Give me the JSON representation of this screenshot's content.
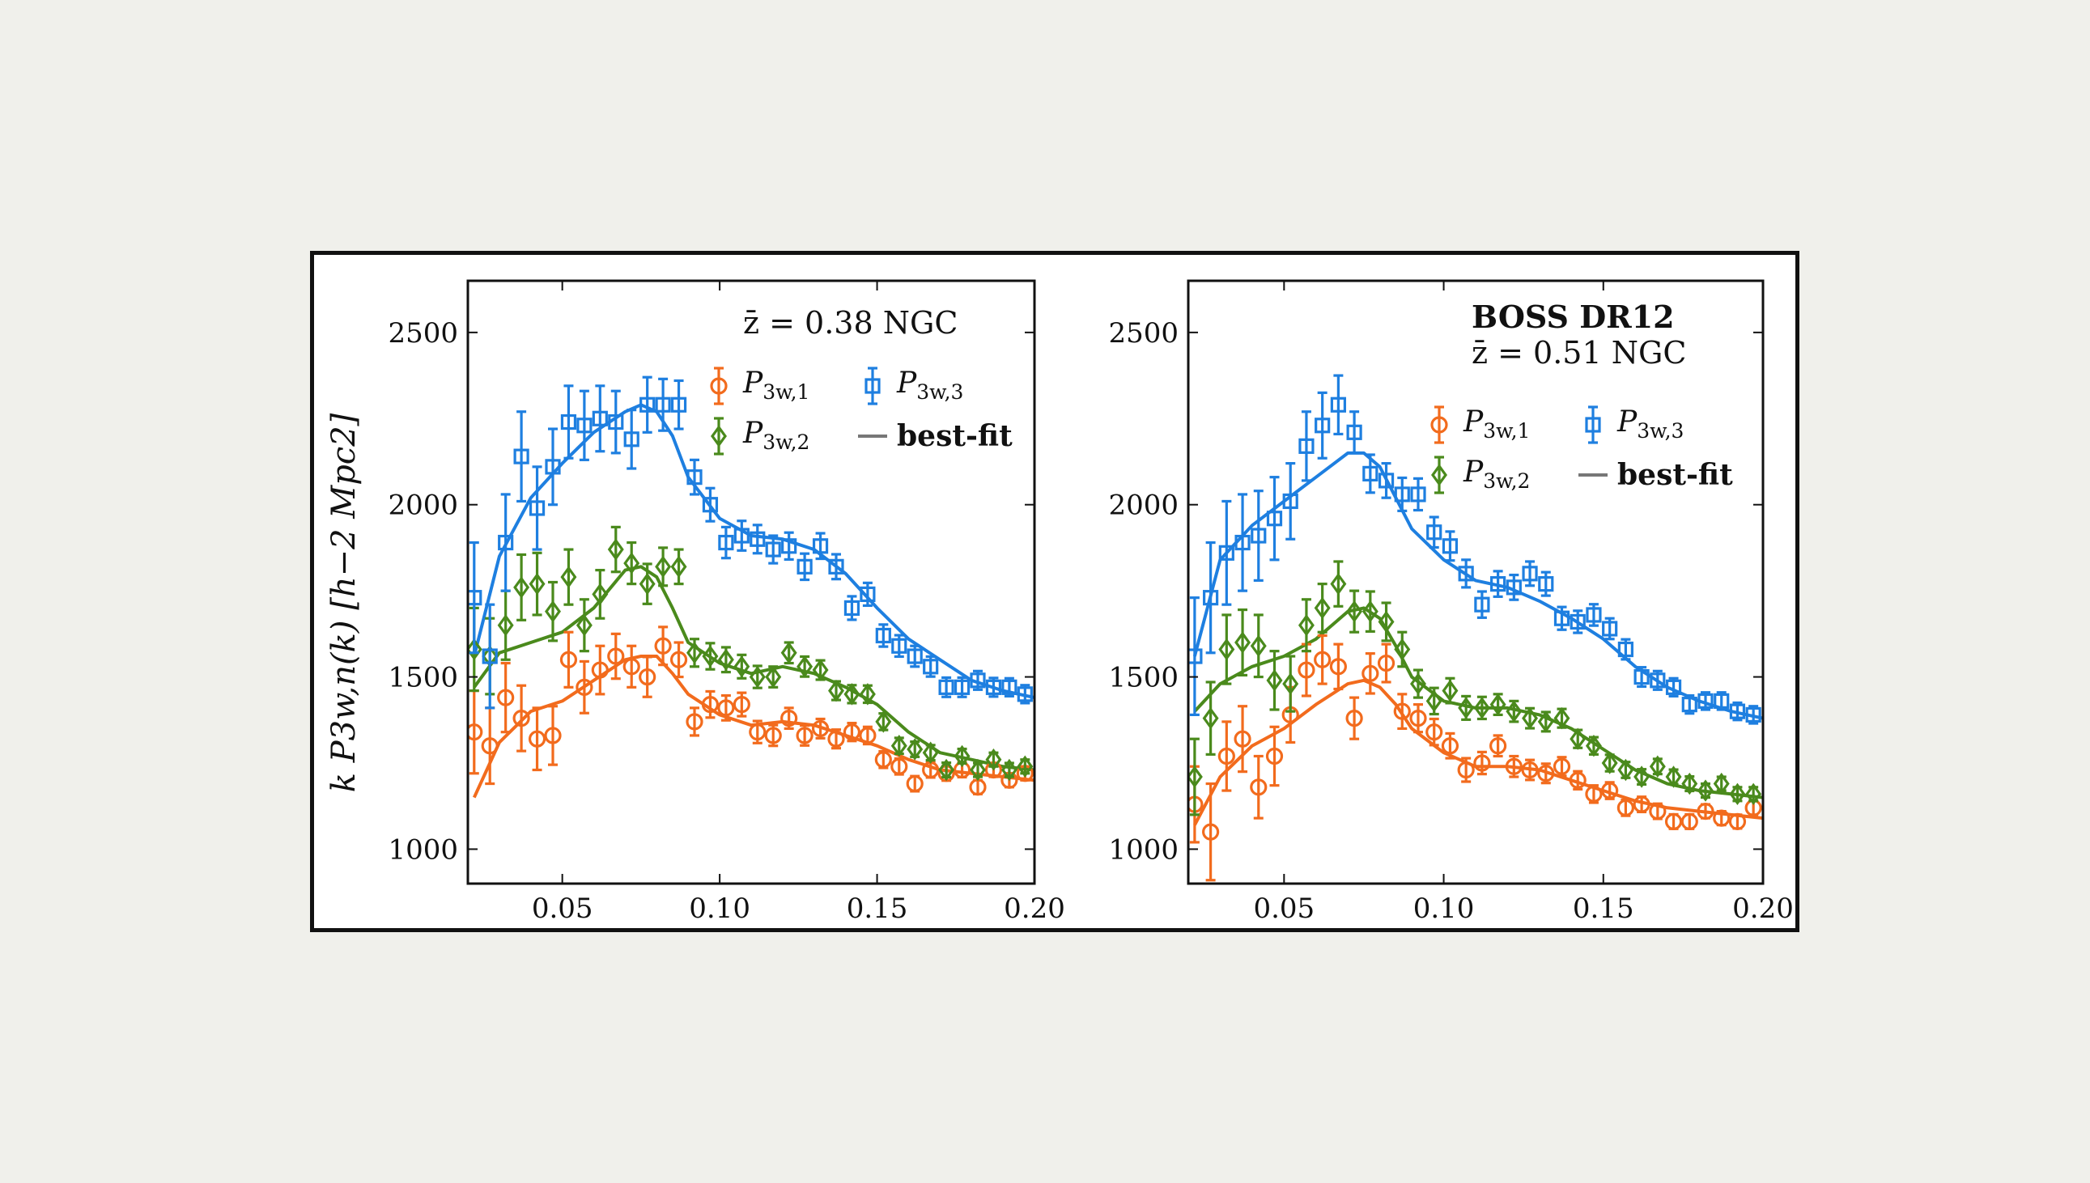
{
  "figure": {
    "ylabel": "k P3w,n(k) [h−2 Mpc2]"
  },
  "legend": {
    "p1": "P3w,1",
    "p2": "P3w,2",
    "p3": "P3w,3",
    "bestfit": "best-fit"
  },
  "colors": {
    "p1": "#f26b1d",
    "p2": "#4a8a1c",
    "p3": "#1e7fe0",
    "bestfit": "#777777"
  },
  "chart_data": [
    {
      "type": "scatter",
      "annotation": "z̄ = 0.38 NGC",
      "xlim": [
        0.02,
        0.2
      ],
      "ylim": [
        900,
        2650
      ],
      "xticks": [
        "0.05",
        "0.10",
        "0.15",
        "0.20"
      ],
      "yticks": [
        "1000",
        "1500",
        "2000",
        "2500"
      ],
      "grid": false,
      "legend_position": "top-right",
      "series": [
        {
          "key": "p1",
          "marker": "circle",
          "x": [
            0.022,
            0.027,
            0.032,
            0.037,
            0.042,
            0.047,
            0.052,
            0.057,
            0.062,
            0.067,
            0.072,
            0.077,
            0.082,
            0.087,
            0.092,
            0.097,
            0.102,
            0.107,
            0.112,
            0.117,
            0.122,
            0.127,
            0.132,
            0.137,
            0.142,
            0.147,
            0.152,
            0.157,
            0.162,
            0.167,
            0.172,
            0.177,
            0.182,
            0.187,
            0.192,
            0.197
          ],
          "y": [
            1340,
            1300,
            1440,
            1380,
            1320,
            1330,
            1550,
            1470,
            1520,
            1560,
            1530,
            1500,
            1590,
            1550,
            1370,
            1420,
            1410,
            1420,
            1340,
            1330,
            1380,
            1330,
            1350,
            1320,
            1340,
            1330,
            1260,
            1240,
            1190,
            1230,
            1220,
            1230,
            1180,
            1230,
            1200,
            1220
          ],
          "err": [
            120,
            110,
            100,
            95,
            90,
            85,
            80,
            75,
            70,
            65,
            60,
            58,
            55,
            50,
            40,
            38,
            36,
            34,
            32,
            30,
            30,
            29,
            28,
            27,
            26,
            25,
            24,
            23,
            22,
            22,
            21,
            21,
            20,
            20,
            20,
            20
          ]
        },
        {
          "key": "p2",
          "marker": "diamond",
          "x": [
            0.022,
            0.027,
            0.032,
            0.037,
            0.042,
            0.047,
            0.052,
            0.057,
            0.062,
            0.067,
            0.072,
            0.077,
            0.082,
            0.087,
            0.092,
            0.097,
            0.102,
            0.107,
            0.112,
            0.117,
            0.122,
            0.127,
            0.132,
            0.137,
            0.142,
            0.147,
            0.152,
            0.157,
            0.162,
            0.167,
            0.172,
            0.177,
            0.182,
            0.187,
            0.192,
            0.197
          ],
          "y": [
            1580,
            1560,
            1650,
            1760,
            1770,
            1690,
            1790,
            1650,
            1740,
            1870,
            1830,
            1770,
            1820,
            1820,
            1570,
            1560,
            1550,
            1530,
            1500,
            1500,
            1570,
            1530,
            1520,
            1460,
            1450,
            1450,
            1370,
            1300,
            1290,
            1280,
            1230,
            1270,
            1230,
            1260,
            1230,
            1240
          ],
          "err": [
            120,
            110,
            100,
            95,
            90,
            85,
            80,
            75,
            70,
            65,
            60,
            58,
            55,
            50,
            40,
            38,
            36,
            34,
            32,
            30,
            30,
            29,
            28,
            27,
            26,
            25,
            24,
            23,
            22,
            22,
            21,
            21,
            20,
            20,
            20,
            20
          ]
        },
        {
          "key": "p3",
          "marker": "square",
          "x": [
            0.022,
            0.027,
            0.032,
            0.037,
            0.042,
            0.047,
            0.052,
            0.057,
            0.062,
            0.067,
            0.072,
            0.077,
            0.082,
            0.087,
            0.092,
            0.097,
            0.102,
            0.107,
            0.112,
            0.117,
            0.122,
            0.127,
            0.132,
            0.137,
            0.142,
            0.147,
            0.152,
            0.157,
            0.162,
            0.167,
            0.172,
            0.177,
            0.182,
            0.187,
            0.192,
            0.197
          ],
          "y": [
            1730,
            1560,
            1890,
            2140,
            1990,
            2110,
            2240,
            2230,
            2250,
            2240,
            2190,
            2290,
            2290,
            2290,
            2080,
            2000,
            1890,
            1910,
            1900,
            1870,
            1880,
            1820,
            1880,
            1820,
            1700,
            1740,
            1620,
            1590,
            1560,
            1530,
            1470,
            1470,
            1490,
            1470,
            1470,
            1450
          ],
          "err": [
            160,
            150,
            140,
            130,
            120,
            110,
            105,
            100,
            95,
            90,
            85,
            80,
            75,
            70,
            50,
            48,
            45,
            43,
            41,
            40,
            39,
            38,
            37,
            36,
            34,
            33,
            32,
            31,
            30,
            29,
            28,
            28,
            27,
            27,
            26,
            26
          ]
        }
      ],
      "bestfit": [
        {
          "key": "p1",
          "x": [
            0.022,
            0.03,
            0.04,
            0.05,
            0.06,
            0.07,
            0.075,
            0.08,
            0.085,
            0.09,
            0.1,
            0.11,
            0.12,
            0.13,
            0.14,
            0.15,
            0.16,
            0.17,
            0.18,
            0.19,
            0.2
          ],
          "y": [
            1150,
            1310,
            1400,
            1430,
            1490,
            1550,
            1560,
            1560,
            1510,
            1450,
            1390,
            1360,
            1370,
            1360,
            1330,
            1300,
            1260,
            1230,
            1220,
            1210,
            1200
          ]
        },
        {
          "key": "p2",
          "x": [
            0.022,
            0.03,
            0.04,
            0.05,
            0.06,
            0.07,
            0.075,
            0.08,
            0.085,
            0.09,
            0.1,
            0.11,
            0.12,
            0.13,
            0.14,
            0.15,
            0.16,
            0.17,
            0.18,
            0.19,
            0.2
          ],
          "y": [
            1470,
            1570,
            1600,
            1630,
            1700,
            1810,
            1820,
            1790,
            1700,
            1600,
            1540,
            1510,
            1530,
            1510,
            1470,
            1420,
            1340,
            1280,
            1260,
            1240,
            1230
          ]
        },
        {
          "key": "p3",
          "x": [
            0.022,
            0.03,
            0.04,
            0.05,
            0.06,
            0.07,
            0.075,
            0.08,
            0.085,
            0.09,
            0.1,
            0.11,
            0.12,
            0.13,
            0.14,
            0.15,
            0.16,
            0.17,
            0.18,
            0.19,
            0.2
          ],
          "y": [
            1560,
            1850,
            2020,
            2120,
            2210,
            2270,
            2290,
            2270,
            2200,
            2080,
            1960,
            1910,
            1900,
            1870,
            1800,
            1700,
            1610,
            1550,
            1490,
            1460,
            1440
          ]
        }
      ]
    },
    {
      "type": "scatter",
      "title": "BOSS DR12",
      "annotation": "z̄ = 0.51 NGC",
      "xlim": [
        0.02,
        0.2
      ],
      "ylim": [
        900,
        2650
      ],
      "xticks": [
        "0.05",
        "0.10",
        "0.15",
        "0.20"
      ],
      "yticks": [
        "1000",
        "1500",
        "2000",
        "2500"
      ],
      "grid": false,
      "legend_position": "top-right",
      "series": [
        {
          "key": "p1",
          "marker": "circle",
          "x": [
            0.022,
            0.027,
            0.032,
            0.037,
            0.042,
            0.047,
            0.052,
            0.057,
            0.062,
            0.067,
            0.072,
            0.077,
            0.082,
            0.087,
            0.092,
            0.097,
            0.102,
            0.107,
            0.112,
            0.117,
            0.122,
            0.127,
            0.132,
            0.137,
            0.142,
            0.147,
            0.152,
            0.157,
            0.162,
            0.167,
            0.172,
            0.177,
            0.182,
            0.187,
            0.192,
            0.197
          ],
          "y": [
            1130,
            1050,
            1270,
            1320,
            1180,
            1270,
            1390,
            1520,
            1550,
            1530,
            1380,
            1510,
            1540,
            1400,
            1380,
            1340,
            1300,
            1230,
            1250,
            1300,
            1240,
            1230,
            1220,
            1240,
            1200,
            1160,
            1170,
            1120,
            1130,
            1110,
            1080,
            1080,
            1110,
            1090,
            1080,
            1120
          ],
          "err": [
            110,
            140,
            100,
            95,
            90,
            85,
            80,
            75,
            70,
            65,
            60,
            58,
            55,
            50,
            40,
            38,
            36,
            34,
            32,
            30,
            30,
            29,
            28,
            27,
            26,
            25,
            24,
            23,
            22,
            22,
            21,
            21,
            20,
            20,
            20,
            20
          ]
        },
        {
          "key": "p2",
          "marker": "diamond",
          "x": [
            0.022,
            0.027,
            0.032,
            0.037,
            0.042,
            0.047,
            0.052,
            0.057,
            0.062,
            0.067,
            0.072,
            0.077,
            0.082,
            0.087,
            0.092,
            0.097,
            0.102,
            0.107,
            0.112,
            0.117,
            0.122,
            0.127,
            0.132,
            0.137,
            0.142,
            0.147,
            0.152,
            0.157,
            0.162,
            0.167,
            0.172,
            0.177,
            0.182,
            0.187,
            0.192,
            0.197
          ],
          "y": [
            1210,
            1380,
            1580,
            1600,
            1590,
            1490,
            1480,
            1650,
            1700,
            1770,
            1690,
            1690,
            1660,
            1580,
            1480,
            1430,
            1460,
            1410,
            1410,
            1420,
            1400,
            1380,
            1370,
            1380,
            1320,
            1300,
            1250,
            1230,
            1210,
            1240,
            1210,
            1190,
            1170,
            1190,
            1160,
            1160
          ],
          "err": [
            110,
            105,
            100,
            95,
            90,
            85,
            80,
            75,
            70,
            65,
            60,
            58,
            55,
            50,
            40,
            38,
            36,
            34,
            32,
            30,
            30,
            29,
            28,
            27,
            26,
            25,
            24,
            23,
            22,
            22,
            21,
            21,
            20,
            20,
            20,
            20
          ]
        },
        {
          "key": "p3",
          "marker": "square",
          "x": [
            0.022,
            0.027,
            0.032,
            0.037,
            0.042,
            0.047,
            0.052,
            0.057,
            0.062,
            0.067,
            0.072,
            0.077,
            0.082,
            0.087,
            0.092,
            0.097,
            0.102,
            0.107,
            0.112,
            0.117,
            0.122,
            0.127,
            0.132,
            0.137,
            0.142,
            0.147,
            0.152,
            0.157,
            0.162,
            0.167,
            0.172,
            0.177,
            0.182,
            0.187,
            0.192,
            0.197
          ],
          "y": [
            1560,
            1730,
            1860,
            1890,
            1910,
            1960,
            2010,
            2170,
            2230,
            2290,
            2210,
            2090,
            2070,
            2030,
            2030,
            1920,
            1880,
            1800,
            1710,
            1770,
            1760,
            1800,
            1770,
            1670,
            1660,
            1680,
            1640,
            1580,
            1500,
            1490,
            1470,
            1420,
            1430,
            1430,
            1400,
            1390
          ],
          "err": [
            170,
            160,
            150,
            140,
            130,
            120,
            110,
            100,
            95,
            85,
            60,
            55,
            50,
            48,
            46,
            44,
            42,
            40,
            38,
            37,
            36,
            35,
            34,
            33,
            32,
            31,
            30,
            29,
            28,
            27,
            26,
            26,
            25,
            25,
            25,
            25
          ]
        }
      ],
      "bestfit": [
        {
          "key": "p1",
          "x": [
            0.022,
            0.03,
            0.04,
            0.05,
            0.06,
            0.07,
            0.075,
            0.08,
            0.085,
            0.09,
            0.1,
            0.11,
            0.12,
            0.13,
            0.14,
            0.15,
            0.16,
            0.17,
            0.18,
            0.19,
            0.2
          ],
          "y": [
            1070,
            1210,
            1300,
            1350,
            1420,
            1480,
            1490,
            1470,
            1420,
            1350,
            1280,
            1240,
            1240,
            1230,
            1200,
            1170,
            1140,
            1120,
            1110,
            1100,
            1090
          ]
        },
        {
          "key": "p2",
          "x": [
            0.022,
            0.03,
            0.04,
            0.05,
            0.06,
            0.07,
            0.075,
            0.08,
            0.085,
            0.09,
            0.1,
            0.11,
            0.12,
            0.13,
            0.14,
            0.15,
            0.16,
            0.17,
            0.18,
            0.19,
            0.2
          ],
          "y": [
            1400,
            1480,
            1530,
            1560,
            1610,
            1690,
            1700,
            1670,
            1590,
            1500,
            1430,
            1410,
            1410,
            1390,
            1350,
            1290,
            1230,
            1190,
            1170,
            1160,
            1150
          ]
        },
        {
          "key": "p3",
          "x": [
            0.022,
            0.03,
            0.04,
            0.05,
            0.06,
            0.07,
            0.075,
            0.08,
            0.085,
            0.09,
            0.1,
            0.11,
            0.12,
            0.13,
            0.14,
            0.15,
            0.16,
            0.17,
            0.18,
            0.19,
            0.2
          ],
          "y": [
            1560,
            1840,
            1940,
            2010,
            2080,
            2150,
            2150,
            2110,
            2020,
            1930,
            1840,
            1780,
            1760,
            1720,
            1670,
            1610,
            1530,
            1470,
            1430,
            1400,
            1380
          ]
        }
      ]
    }
  ]
}
